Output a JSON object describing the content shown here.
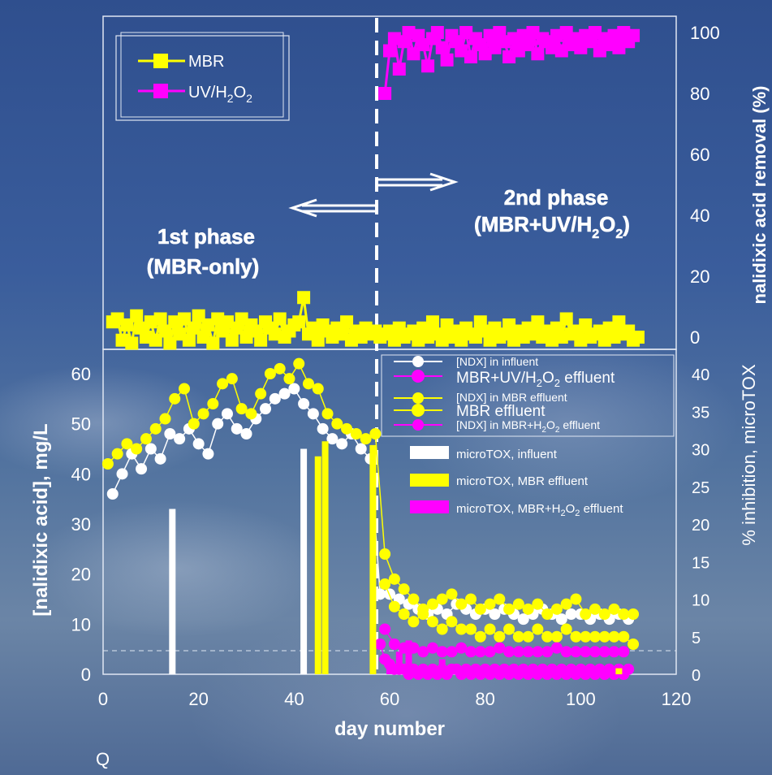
{
  "chart_data": [
    {
      "type": "line",
      "xlabel": "day number",
      "ylabel": "nalidixic acid removal (%)",
      "xlim": [
        0,
        120
      ],
      "ylim": [
        0,
        100
      ],
      "y_ticks": [
        "0",
        "20",
        "40",
        "60",
        "80",
        "100"
      ],
      "legend_placement": "top-left",
      "series": [
        {
          "name": "MBR",
          "color": "#ffff00",
          "x": [
            2,
            3,
            4,
            5,
            6,
            7,
            8,
            9,
            10,
            11,
            12,
            13,
            14,
            15,
            16,
            17,
            18,
            19,
            20,
            21,
            22,
            23,
            24,
            25,
            26,
            27,
            28,
            29,
            30,
            31,
            32,
            33,
            34,
            35,
            36,
            37,
            38,
            39,
            40,
            41,
            42,
            43,
            44,
            45,
            46,
            47,
            48,
            49,
            50,
            51,
            52,
            53,
            54,
            55,
            56,
            57,
            58,
            59,
            60,
            61,
            62,
            63,
            64,
            65,
            66,
            67,
            68,
            69,
            70,
            71,
            72,
            73,
            74,
            75,
            76,
            77,
            78,
            79,
            80,
            81,
            82,
            83,
            84,
            85,
            86,
            87,
            88,
            89,
            90,
            91,
            92,
            93,
            94,
            95,
            96,
            97,
            98,
            99,
            100,
            101,
            102,
            103,
            104,
            105,
            106,
            107,
            108,
            109,
            110,
            111,
            112
          ],
          "values": [
            5,
            6,
            -1,
            4,
            -2,
            7,
            3,
            0,
            5,
            -1,
            6,
            2,
            -2,
            5,
            1,
            6,
            -1,
            3,
            7,
            0,
            4,
            -2,
            6,
            2,
            5,
            -1,
            3,
            6,
            0,
            4,
            2,
            -1,
            5,
            3,
            1,
            6,
            0,
            2,
            4,
            5,
            13,
            1,
            3,
            -1,
            4,
            2,
            0,
            3,
            1,
            5,
            -1,
            2,
            0,
            3,
            1,
            2,
            0,
            1,
            2,
            -1,
            3,
            0,
            1,
            2,
            -1,
            3,
            0,
            5,
            1,
            -1,
            4,
            0,
            2,
            -1,
            3,
            1,
            0,
            5,
            2,
            -1,
            3,
            0,
            1,
            4,
            -1,
            2,
            0,
            3,
            1,
            5,
            0,
            2,
            -1,
            3,
            0,
            6,
            1,
            2,
            -1,
            4,
            0,
            1,
            2,
            -1,
            3,
            0,
            5,
            1,
            2,
            -1,
            0
          ]
        },
        {
          "name": "UV/H2O2",
          "color": "#ff00ff",
          "x": [
            59,
            60,
            61,
            62,
            63,
            64,
            65,
            66,
            67,
            68,
            69,
            70,
            71,
            72,
            73,
            74,
            75,
            76,
            77,
            78,
            79,
            80,
            81,
            82,
            83,
            84,
            85,
            86,
            87,
            88,
            89,
            90,
            91,
            92,
            93,
            94,
            95,
            96,
            97,
            98,
            99,
            100,
            101,
            102,
            103,
            104,
            105,
            106,
            107,
            108,
            109,
            110,
            111
          ],
          "values": [
            80,
            94,
            98,
            88,
            97,
            100,
            93,
            99,
            96,
            89,
            98,
            100,
            95,
            91,
            99,
            97,
            94,
            100,
            92,
            98,
            96,
            93,
            99,
            95,
            100,
            97,
            92,
            98,
            94,
            99,
            96,
            100,
            93,
            98,
            97,
            95,
            99,
            94,
            100,
            96,
            98,
            95,
            99,
            97,
            100,
            94,
            98,
            96,
            99,
            95,
            100,
            97,
            99
          ]
        }
      ],
      "annotations": [
        "1st phase",
        "(MBR-only)",
        "2nd phase",
        "(MBR+UV/H2O2)"
      ]
    },
    {
      "type": "line",
      "xlabel": "day number",
      "ylabel": "[nalidixic acid], mg/L",
      "y2label": "% inhibition, microTOX",
      "xlim": [
        0,
        120
      ],
      "ylim": [
        0,
        60
      ],
      "y2lim": [
        0,
        40
      ],
      "x_ticks": [
        "0",
        "20",
        "40",
        "60",
        "80",
        "100",
        "120"
      ],
      "y_ticks": [
        "0",
        "10",
        "20",
        "30",
        "40",
        "50",
        "60"
      ],
      "y2_ticks": [
        "0",
        "5",
        "10",
        "15",
        "20",
        "25",
        "30",
        "35",
        "40"
      ],
      "legend_placement": "top-right",
      "series": [
        {
          "name": "[NDX] in influent",
          "color": "#ffffff",
          "x": [
            2,
            4,
            6,
            8,
            10,
            12,
            14,
            16,
            18,
            20,
            22,
            24,
            26,
            28,
            30,
            32,
            34,
            36,
            38,
            40,
            42,
            44,
            46,
            48,
            50,
            52,
            54,
            56,
            58,
            60,
            62,
            64,
            66,
            68,
            70,
            72,
            74,
            76,
            78,
            80,
            82,
            84,
            86,
            88,
            90,
            92,
            94,
            96,
            98,
            100,
            102,
            104,
            106,
            108,
            110
          ],
          "values": [
            36,
            40,
            44,
            41,
            45,
            43,
            48,
            47,
            49,
            46,
            44,
            50,
            52,
            49,
            48,
            51,
            53,
            55,
            56,
            57,
            54,
            52,
            49,
            47,
            46,
            48,
            45,
            43,
            16,
            16,
            15,
            14,
            13,
            12,
            13,
            12,
            14,
            13,
            12,
            13,
            12,
            13,
            12,
            11,
            12,
            13,
            12,
            11,
            12,
            12,
            11,
            12,
            11,
            12,
            11
          ]
        },
        {
          "name": "[NDX] in MBR effluent",
          "color": "#ffff00",
          "x": [
            1,
            3,
            5,
            7,
            9,
            11,
            13,
            15,
            17,
            19,
            21,
            23,
            25,
            27,
            29,
            31,
            33,
            35,
            37,
            39,
            41,
            43,
            45,
            47,
            49,
            51,
            53,
            55,
            57,
            59,
            61,
            63,
            65,
            67,
            69,
            71,
            73,
            75,
            77,
            79,
            81,
            83,
            85,
            87,
            89,
            91,
            93,
            95,
            97,
            99,
            101,
            103,
            105,
            107,
            109,
            111
          ],
          "values": [
            42,
            44,
            46,
            45,
            47,
            49,
            51,
            55,
            57,
            50,
            52,
            54,
            58,
            59,
            53,
            52,
            56,
            60,
            61,
            59,
            62,
            58,
            57,
            52,
            50,
            49,
            48,
            47,
            48,
            24,
            19,
            17,
            15,
            13,
            14,
            15,
            16,
            14,
            15,
            13,
            14,
            15,
            13,
            14,
            13,
            14,
            12,
            13,
            14,
            15,
            12,
            13,
            12,
            13,
            12,
            12
          ]
        },
        {
          "name": "[NDX] in MBR+H2O2 effluent",
          "color": "#ff00ff",
          "x": [
            58,
            59,
            60,
            61,
            62,
            63,
            64,
            65,
            66,
            67,
            68,
            69,
            70,
            71,
            72,
            73,
            74,
            75,
            76,
            77,
            78,
            79,
            80,
            81,
            82,
            83,
            84,
            85,
            86,
            87,
            88,
            89,
            90,
            91,
            92,
            93,
            94,
            95,
            96,
            97,
            98,
            99,
            100,
            101,
            102,
            103,
            104,
            105,
            106,
            107,
            108,
            109,
            110
          ],
          "values": [
            6,
            3,
            2,
            1,
            1,
            1,
            0,
            1,
            0,
            1,
            0,
            1,
            0,
            1,
            0,
            1,
            1,
            0,
            1,
            0,
            1,
            0,
            1,
            0,
            1,
            0,
            1,
            0,
            1,
            0,
            1,
            0,
            1,
            0,
            1,
            0,
            1,
            0,
            1,
            0,
            1,
            0,
            1,
            0,
            1,
            0,
            1,
            0,
            1,
            0,
            1,
            0,
            1
          ]
        },
        {
          "name": "MBR effluent",
          "color": "#ffff00",
          "x": [
            59,
            61,
            63,
            65,
            67,
            69,
            71,
            73,
            75,
            77,
            79,
            81,
            83,
            85,
            87,
            89,
            91,
            93,
            95,
            97,
            99,
            101,
            103,
            105,
            107,
            109,
            111
          ],
          "y2_values": [
            12,
            9,
            8,
            7,
            8,
            7,
            6,
            7,
            6,
            6,
            5,
            6,
            5,
            6,
            5,
            5,
            6,
            5,
            5,
            6,
            5,
            5,
            5,
            5,
            5,
            5,
            4
          ]
        },
        {
          "name": "MBR+UV/H2O2 effluent",
          "color": "#ff00ff",
          "x": [
            59,
            61,
            63,
            65,
            67,
            69,
            71,
            73,
            75,
            77,
            79,
            81,
            83,
            85,
            87,
            89,
            91,
            93,
            95,
            97,
            99,
            101,
            103,
            105,
            107,
            109
          ],
          "y2_values": [
            6,
            4,
            3.5,
            3.5,
            3,
            3.5,
            3,
            3,
            3.5,
            3,
            3,
            3,
            3.5,
            3,
            3,
            3,
            3,
            3,
            3.5,
            3,
            3,
            3,
            3,
            3,
            3,
            3
          ]
        },
        {
          "name": "microTOX, influent",
          "type": "bar",
          "color": "#ffffff",
          "x": [
            14.5,
            42
          ],
          "y2_values": [
            22,
            30
          ]
        },
        {
          "name": "microTOX, MBR effluent",
          "type": "bar",
          "color": "#ffff00",
          "x": [
            45,
            46.5,
            56.5,
            108
          ],
          "y2_values": [
            29,
            31,
            30.5,
            0.8
          ]
        },
        {
          "name": "microTOX, MBR+H2O2 effluent",
          "type": "bar",
          "color": "#ff00ff",
          "x": [
            60,
            62,
            64,
            67,
            71,
            75
          ],
          "y2_values": [
            1.5,
            3,
            4.5,
            1,
            2,
            1
          ]
        }
      ]
    }
  ],
  "legend_top": [
    {
      "name": "MBR",
      "color": "#ffff00"
    },
    {
      "name": "UV/H2O2",
      "color": "#ff00ff",
      "label_main": "UV/H",
      "sub1": "2",
      "mid": "O",
      "sub2": "2"
    }
  ],
  "legend_bottom": [
    {
      "text": "[NDX] in influent",
      "color": "#ffffff"
    },
    {
      "text": "MBR+UV/H2O2 effluent",
      "color": "#ff00ff"
    },
    {
      "text": "[NDX] in MBR effluent",
      "color": "#ffff00"
    },
    {
      "text": "MBR effluent",
      "color": "#ffff00"
    },
    {
      "text": "[NDX] in MBR+H2O2 effluent",
      "color": "#ff00ff"
    },
    {
      "text": "microTOX, influent",
      "color": "#ffffff"
    },
    {
      "text": "microTOX, MBR effluent",
      "color": "#ffff00"
    },
    {
      "text": "microTOX, MBR+H2O2 effluent",
      "color": "#ff00ff"
    }
  ],
  "labels": {
    "phase1_line1": "1st phase",
    "phase1_line2": "(MBR-only)",
    "phase2_line1": "2nd phase",
    "phase2_line2": "(MBR+UV/H2O2)",
    "xlabel": "day number",
    "ylabel_top": "nalidixic acid removal (%)",
    "ylabel_bottom": "[nalidixic acid], mg/L",
    "y2label_bottom": "% inhibition, microTOX",
    "stray_glyph": "Q"
  }
}
